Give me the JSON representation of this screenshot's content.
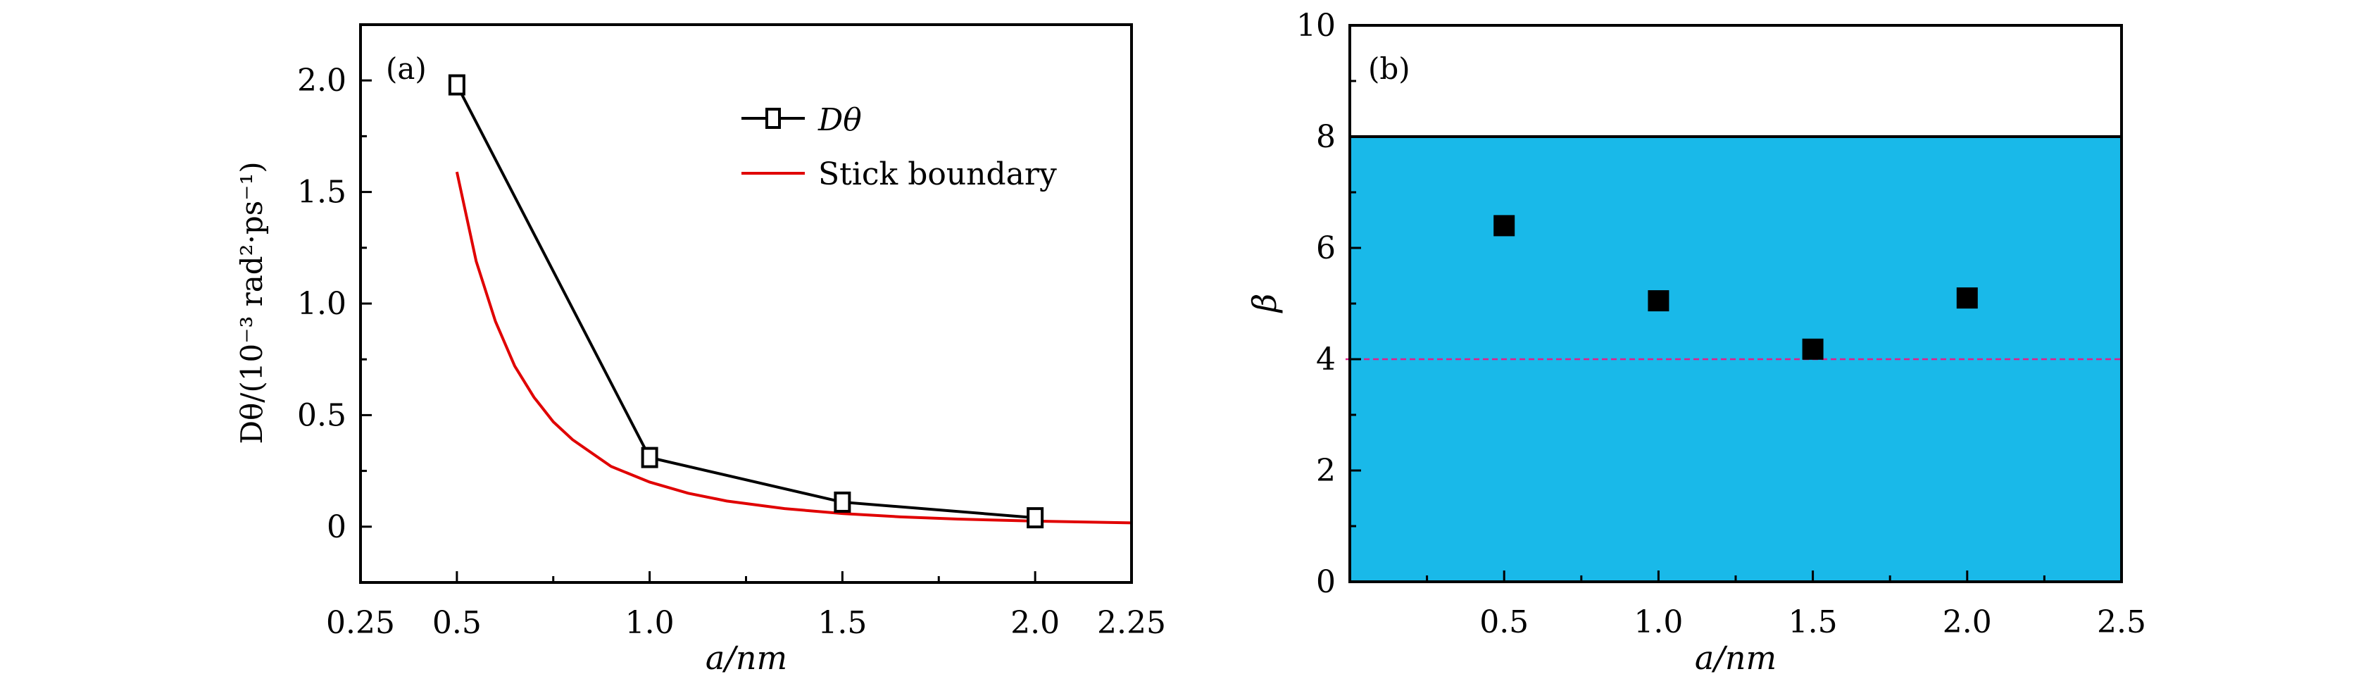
{
  "chart_data": [
    {
      "type": "line",
      "panel_label": "(a)",
      "xlabel": "a/nm",
      "ylabel": "Dθ/(10⁻³ rad²·ps⁻¹)",
      "xlim": [
        0.25,
        2.25
      ],
      "ylim": [
        -0.25,
        2.25
      ],
      "xticks": [
        0.25,
        0.5,
        1.0,
        1.5,
        2.0,
        2.25
      ],
      "xtick_labels": [
        "0.25",
        "0.5",
        "1.0",
        "1.5",
        "2.0",
        "2.25"
      ],
      "xminor": [
        0.75,
        1.25,
        1.75
      ],
      "yticks": [
        0,
        0.5,
        1.0,
        1.5,
        2.0
      ],
      "ytick_labels": [
        "0",
        "0.5",
        "1.0",
        "1.5",
        "2.0"
      ],
      "yminor": [
        0.25,
        0.75,
        1.25,
        1.75
      ],
      "legend_position": "top-right",
      "series": [
        {
          "name": "Dθ",
          "color": "#000000",
          "marker": "open-square",
          "x": [
            0.5,
            1.0,
            1.5,
            2.0
          ],
          "y": [
            1.98,
            0.31,
            0.11,
            0.04
          ]
        },
        {
          "name": "Stick boundary",
          "color": "#e00000",
          "marker": "none",
          "x": [
            0.5,
            0.55,
            0.6,
            0.65,
            0.7,
            0.75,
            0.8,
            0.9,
            1.0,
            1.1,
            1.2,
            1.35,
            1.5,
            1.65,
            1.8,
            2.0,
            2.25
          ],
          "y": [
            1.59,
            1.19,
            0.92,
            0.72,
            0.58,
            0.47,
            0.39,
            0.27,
            0.2,
            0.15,
            0.115,
            0.081,
            0.059,
            0.044,
            0.034,
            0.025,
            0.017
          ]
        }
      ]
    },
    {
      "type": "scatter",
      "panel_label": "(b)",
      "xlabel": "a/nm",
      "ylabel": "β",
      "xlim": [
        0,
        2.5
      ],
      "ylim": [
        0,
        10
      ],
      "xticks": [
        0.5,
        1.0,
        1.5,
        2.0,
        2.5
      ],
      "xtick_labels": [
        "0.5",
        "1.0",
        "1.5",
        "2.0",
        "2.5"
      ],
      "xminor": [
        0.25,
        0.75,
        1.25,
        1.75,
        2.25
      ],
      "yticks": [
        0,
        2,
        4,
        6,
        8,
        10
      ],
      "ytick_labels": [
        "0",
        "2",
        "4",
        "6",
        "8",
        "10"
      ],
      "yminor": [
        1,
        3,
        5,
        7,
        9
      ],
      "shaded_region": {
        "y_from": 0,
        "y_to": 8,
        "color": "#19b9e9"
      },
      "reference_line": {
        "y": 4,
        "color": "#e0208a",
        "style": "dashed"
      },
      "series": [
        {
          "name": "β",
          "color": "#000000",
          "marker": "filled-square",
          "x": [
            0.5,
            1.0,
            1.5,
            2.0
          ],
          "y": [
            6.4,
            5.05,
            4.18,
            5.1
          ]
        }
      ]
    }
  ]
}
